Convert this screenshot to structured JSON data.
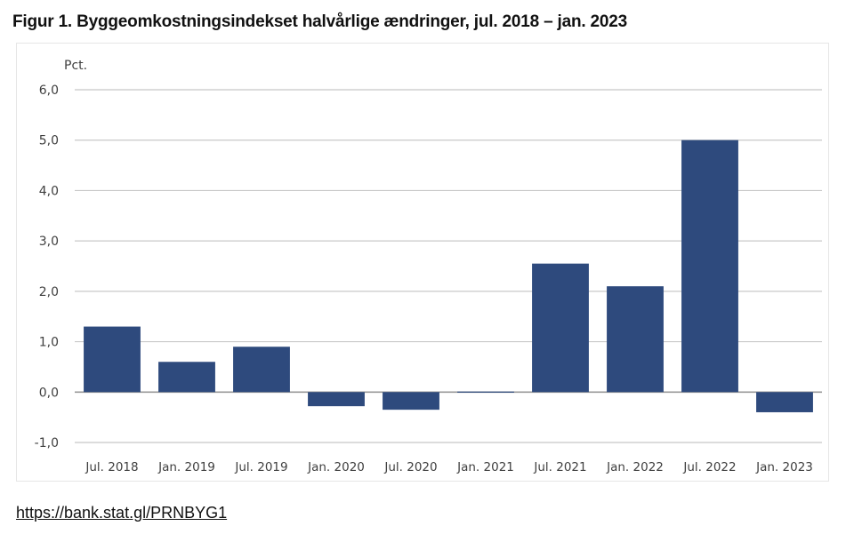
{
  "figure_title": "Figur 1. Byggeomkostningsindekset halvårlige ændringer, jul. 2018 – jan. 2023",
  "source_link": "https://bank.stat.gl/PRNBYG1",
  "chart_data": {
    "type": "bar",
    "title": "Figur 1. Byggeomkostningsindekset halvårlige ændringer, jul. 2018 – jan. 2023",
    "ylabel": "Pct.",
    "xlabel": "",
    "categories": [
      "Jul. 2018",
      "Jan. 2019",
      "Jul. 2019",
      "Jan. 2020",
      "Jul. 2020",
      "Jan. 2021",
      "Jul. 2021",
      "Jan. 2022",
      "Jul. 2022",
      "Jan. 2023"
    ],
    "values": [
      1.3,
      0.6,
      0.9,
      -0.28,
      -0.35,
      0.02,
      2.55,
      2.1,
      5.0,
      -0.4
    ],
    "ylim": [
      -1.0,
      6.0
    ],
    "yticks": [
      "-1,0",
      "0,0",
      "1,0",
      "2,0",
      "3,0",
      "4,0",
      "5,0",
      "6,0"
    ],
    "ytick_values": [
      -1,
      0,
      1,
      2,
      3,
      4,
      5,
      6
    ],
    "bar_color": "#2e4a7d",
    "grid_color": "#c8c8c8",
    "grid": true,
    "legend": "none"
  }
}
